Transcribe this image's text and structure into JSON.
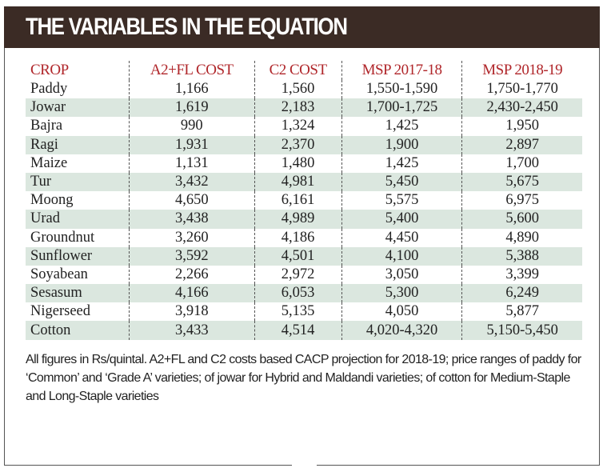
{
  "title": "THE VARIABLES IN THE EQUATION",
  "chart_data": {
    "type": "table",
    "title": "THE VARIABLES IN THE EQUATION",
    "columns": [
      "CROP",
      "A2+FL COST",
      "C2 COST",
      "MSP 2017-18",
      "MSP 2018-19"
    ],
    "rows": [
      [
        "Paddy",
        "1,166",
        "1,560",
        "1,550-1,590",
        "1,750-1,770"
      ],
      [
        "Jowar",
        "1,619",
        "2,183",
        "1,700-1,725",
        "2,430-2,450"
      ],
      [
        "Bajra",
        "990",
        "1,324",
        "1,425",
        "1,950"
      ],
      [
        "Ragi",
        "1,931",
        "2,370",
        "1,900",
        "2,897"
      ],
      [
        "Maize",
        "1,131",
        "1,480",
        "1,425",
        "1,700"
      ],
      [
        "Tur",
        "3,432",
        "4,981",
        "5,450",
        "5,675"
      ],
      [
        "Moong",
        "4,650",
        "6,161",
        "5,575",
        "6,975"
      ],
      [
        "Urad",
        "3,438",
        "4,989",
        "5,400",
        "5,600"
      ],
      [
        "Groundnut",
        "3,260",
        "4,186",
        "4,450",
        "4,890"
      ],
      [
        "Sunflower",
        "3,592",
        "4,501",
        "4,100",
        "5,388"
      ],
      [
        "Soyabean",
        "2,266",
        "2,972",
        "3,050",
        "3,399"
      ],
      [
        "Sesasum",
        "4,166",
        "6,053",
        "5,300",
        "6,249"
      ],
      [
        "Nigerseed",
        "3,918",
        "5,135",
        "4,050",
        "5,877"
      ],
      [
        "Cotton",
        "3,433",
        "4,514",
        "4,020-4,320",
        "5,150-5,450"
      ]
    ],
    "footnote": "All figures in Rs/quintal. A2+FL and C2 costs based CACP projection for 2018-19; price ranges of paddy for ‘Common’ and ‘Grade A’ varieties; of jowar for Hybrid and Maldandi varieties; of cotton for Medium-Staple and Long-Staple varieties"
  },
  "colors": {
    "banner": "#3b2b25",
    "header_text": "#b0262a",
    "alt_row": "#dbe7df"
  }
}
